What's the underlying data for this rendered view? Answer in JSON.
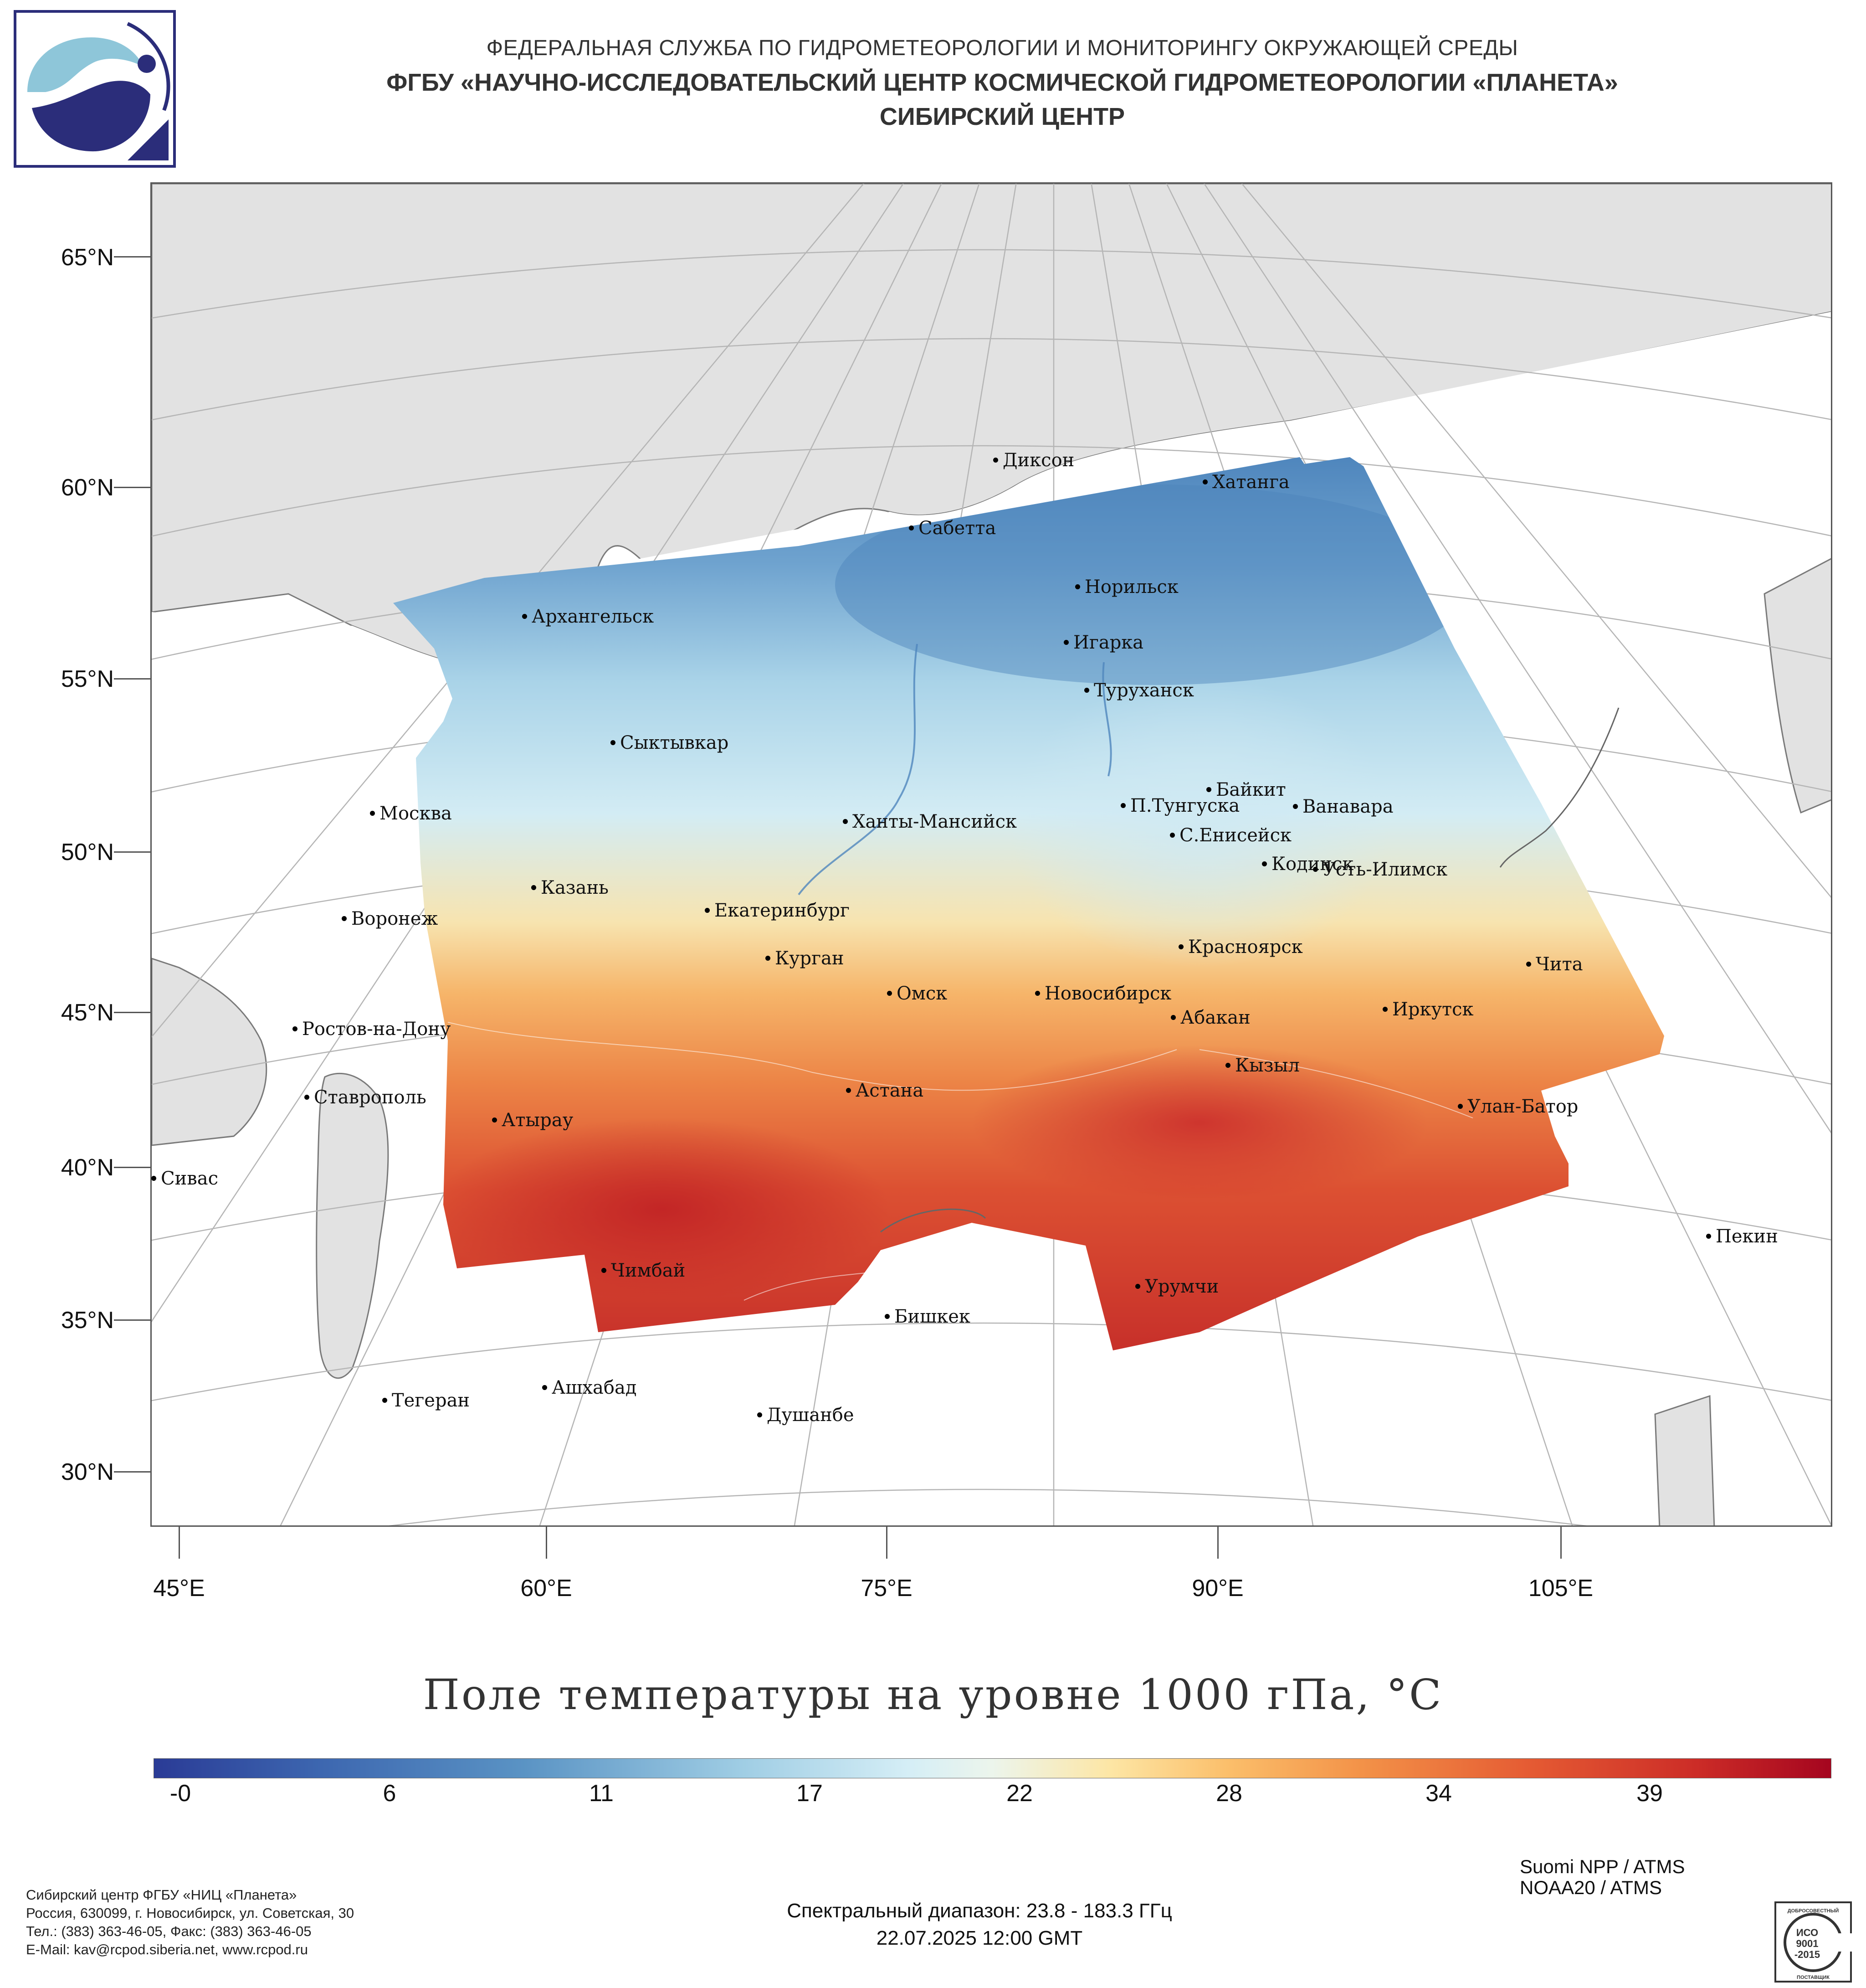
{
  "header": {
    "line1": "ФЕДЕРАЛЬНАЯ СЛУЖБА ПО ГИДРОМЕТЕОРОЛОГИИ И МОНИТОРИНГУ ОКРУЖАЮЩЕЙ СРЕДЫ",
    "line2": "ФГБУ «НАУЧНО-ИССЛЕДОВАТЕЛЬСКИЙ ЦЕНТР КОСМИЧЕСКОЙ ГИДРОМЕТЕОРОЛОГИИ «ПЛАНЕТА»",
    "line3": "СИБИРСКИЙ ЦЕНТР"
  },
  "logo_icon": "planeta-logo-icon",
  "map": {
    "lat_labels": [
      "65°N",
      "60°N",
      "55°N",
      "50°N",
      "45°N",
      "40°N",
      "35°N",
      "30°N"
    ],
    "lon_labels": [
      "45°E",
      "60°E",
      "75°E",
      "90°E",
      "105°E"
    ],
    "cities": [
      "Диксон",
      "Хатанга",
      "Сабетта",
      "Норильск",
      "Архангельск",
      "Игарка",
      "Туруханск",
      "Сыктывкар",
      "Байкит",
      "Москва",
      "Ханты-Мансийск",
      "П.Тунгуска",
      "Ванавара",
      "С.Енисейск",
      "Кодинск",
      "Усть-Илимск",
      "Казань",
      "Екатеринбург",
      "Воронеж",
      "Курган",
      "Красноярск",
      "Чита",
      "Омск",
      "Новосибирск",
      "Ростов-на-Дону",
      "Абакан",
      "Иркутск",
      "Кызыл",
      "Ставрополь",
      "Астана",
      "Улан-Батор",
      "Атырау",
      "Сивас",
      "Пекин",
      "Чимбай",
      "Урумчи",
      "Бишкек",
      "Ашхабад",
      "Тегеран",
      "Душанбе"
    ]
  },
  "title": "Поле температуры на уровне 1000 гПа, °С",
  "colorbar": {
    "ticks": [
      "-0",
      "6",
      "11",
      "17",
      "22",
      "28",
      "34",
      "39"
    ],
    "min_color": "#2a3b96",
    "mid_color": "#ecf5ec",
    "max_color": "#a5051f"
  },
  "footer": {
    "org_name": "Сибирский центр ФГБУ «НИЦ «Планета»",
    "address": "Россия, 630099, г. Новосибирск, ул. Советская, 30",
    "phone": "Тел.: (383) 363-46-05, Факс: (383) 363-46-05",
    "email": "E-Mail: kav@rcpod.siberia.net, www.rcpod.ru",
    "spectral": "Спектральный диапазон: 23.8 - 183.3 ГГц",
    "datetime": "22.07.2025 12:00 GMT",
    "satellite1": "Suomi NPP / ATMS",
    "satellite2": "NOAA20 / ATMS"
  },
  "iso_badge": {
    "top_text": "ДОБРОСОВЕСТНЫЙ",
    "standard_line1": "ИСО",
    "standard_line2": "9001",
    "standard_line3": "-2015",
    "bottom_text": "ПОСТАВЩИК"
  }
}
